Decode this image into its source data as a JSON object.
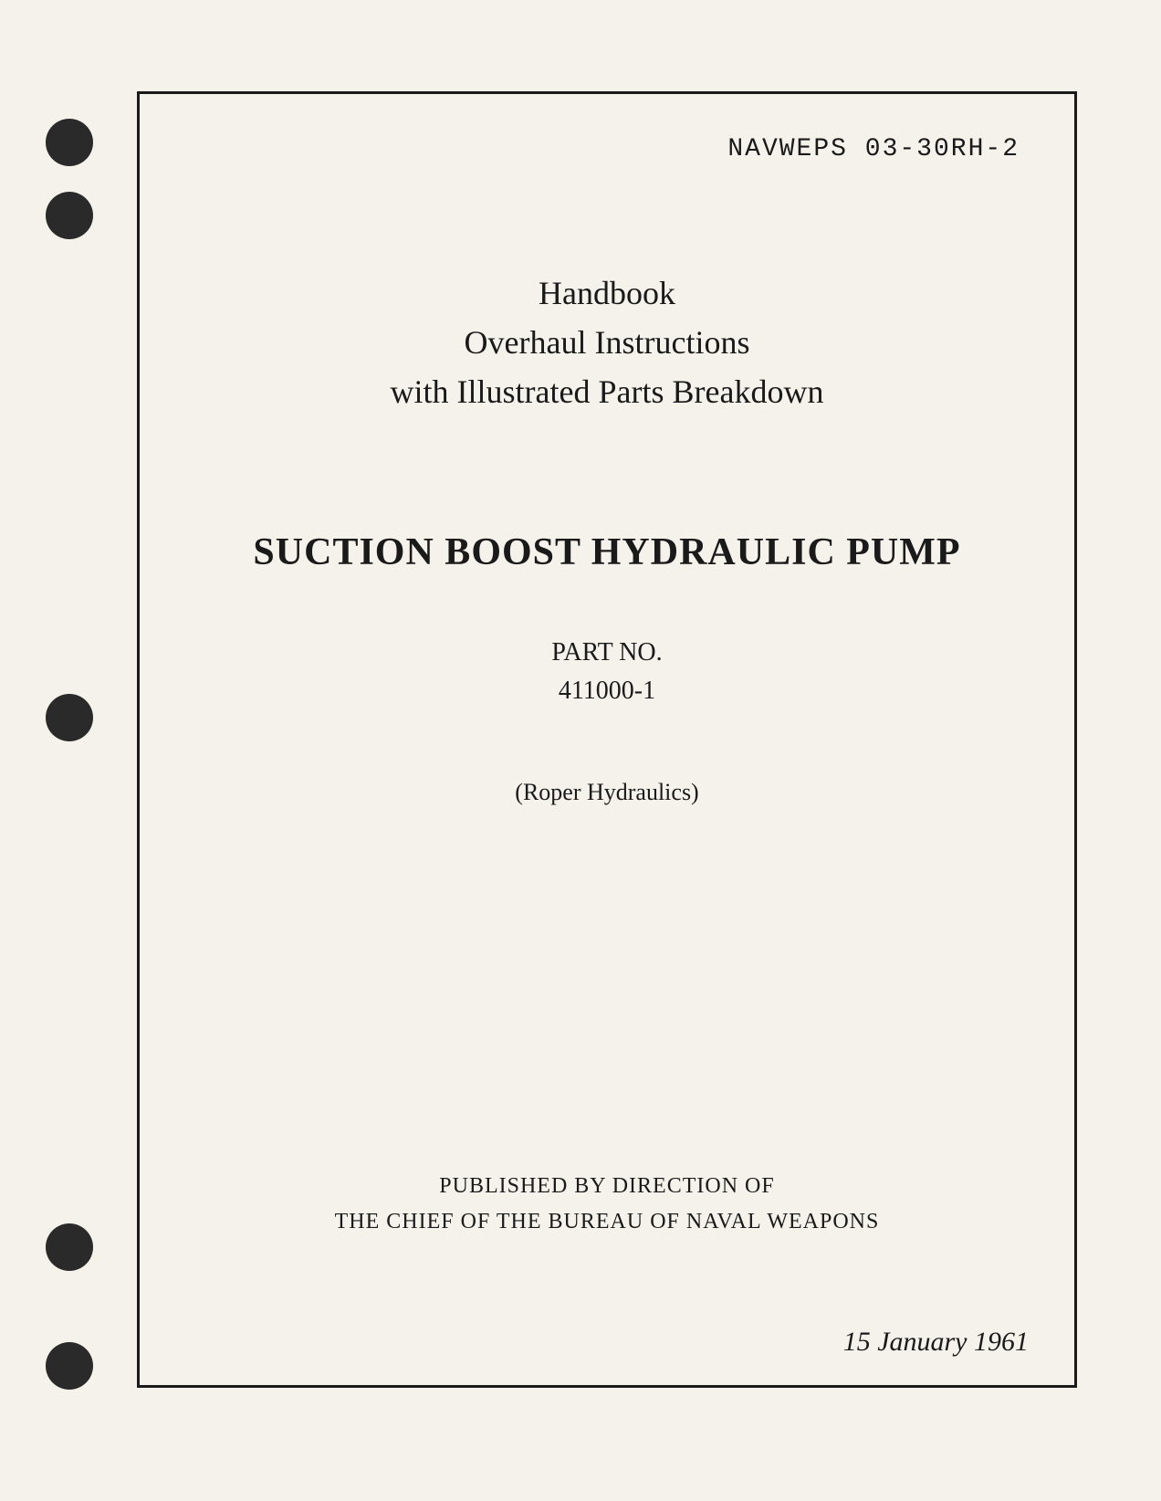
{
  "document_number": "NAVWEPS 03-30RH-2",
  "handbook": {
    "line1": "Handbook",
    "line2": "Overhaul Instructions",
    "line3": "with Illustrated Parts Breakdown"
  },
  "title": "SUCTION BOOST HYDRAULIC PUMP",
  "part": {
    "label": "PART NO.",
    "number": "411000-1"
  },
  "manufacturer": "(Roper Hydraulics)",
  "publisher": {
    "line1": "PUBLISHED BY DIRECTION OF",
    "line2": "THE CHIEF OF THE BUREAU OF NAVAL WEAPONS"
  },
  "date": "15 January 1961"
}
